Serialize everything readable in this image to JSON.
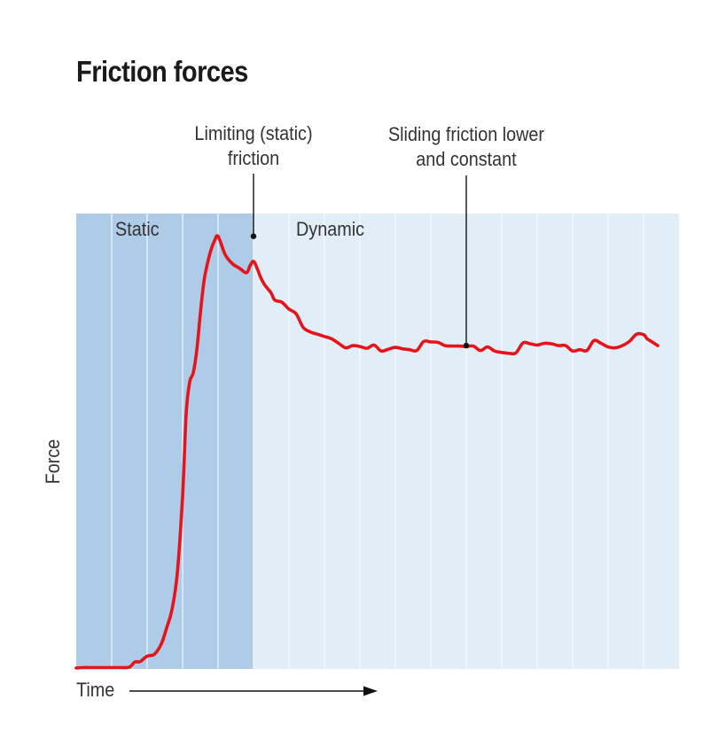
{
  "chart_data": {
    "type": "line",
    "title": "Friction forces",
    "xlabel": "Time",
    "ylabel": "Force",
    "xlim": [
      0,
      340
    ],
    "ylim": [
      0,
      100
    ],
    "regions": [
      {
        "name": "Static",
        "x_start": 0,
        "x_end": 100,
        "color": "#aecbe8"
      },
      {
        "name": "Dynamic",
        "x_start": 100,
        "x_end": 340,
        "color": "#e1edf7"
      }
    ],
    "vertical_grid_x": [
      20,
      40,
      60,
      80,
      100,
      120,
      140,
      160,
      180,
      200,
      220,
      240,
      260,
      280,
      300,
      320
    ],
    "series": [
      {
        "name": "Force",
        "color": "#e5141b",
        "x": [
          0,
          4,
          8,
          16,
          24,
          30,
          33,
          36,
          40,
          44,
          48,
          51,
          54,
          57,
          60,
          62,
          64,
          66,
          68,
          70,
          72,
          74,
          76,
          78,
          80,
          84,
          88,
          92,
          96,
          98,
          100,
          102,
          104,
          106,
          108,
          110,
          112,
          116,
          120,
          124,
          128,
          132,
          136,
          140,
          144,
          148,
          152,
          156,
          160,
          164,
          168,
          172,
          176,
          180,
          184,
          188,
          192,
          196,
          200,
          204,
          208,
          212,
          216,
          220,
          224,
          228,
          232,
          236,
          240,
          244,
          248,
          252,
          256,
          260,
          264,
          268,
          272,
          276,
          280,
          284,
          288,
          292,
          296,
          300,
          304,
          308,
          312,
          316,
          320,
          322,
          324,
          326,
          328
        ],
        "y": [
          0.2,
          0.3,
          0.3,
          0.3,
          0.3,
          0.4,
          1.5,
          1.6,
          2.8,
          3.2,
          5.5,
          9.0,
          13.0,
          21.0,
          38.0,
          56.0,
          63.0,
          65.0,
          70.0,
          78.0,
          85.0,
          89.0,
          92.0,
          94.0,
          95.0,
          91.0,
          89.0,
          88.0,
          87.0,
          88.5,
          89.5,
          88.0,
          86.0,
          84.5,
          83.5,
          82.5,
          81.0,
          80.5,
          79.0,
          78.0,
          75.0,
          74.0,
          73.5,
          73.0,
          72.5,
          71.5,
          70.5,
          71.0,
          70.8,
          70.4,
          71.1,
          69.8,
          70.2,
          70.6,
          70.3,
          70.1,
          69.9,
          71.9,
          71.8,
          71.7,
          71.0,
          70.9,
          70.9,
          70.8,
          70.9,
          69.9,
          70.7,
          69.8,
          69.5,
          69.3,
          69.4,
          71.6,
          71.4,
          71.1,
          71.5,
          71.4,
          71.0,
          71.0,
          69.8,
          70.1,
          69.9,
          72.1,
          71.5,
          70.7,
          70.5,
          71.0,
          71.9,
          73.5,
          73.4,
          72.5,
          72.0,
          71.5,
          71.0
        ]
      }
    ],
    "annotations": [
      {
        "lines": [
          "Limiting (static)",
          "friction"
        ],
        "x": 100,
        "y": 95
      },
      {
        "lines": [
          "Sliding friction lower",
          "and constant"
        ],
        "x": 220,
        "y": 71
      }
    ],
    "regions_labels": {
      "static": "Static",
      "dynamic": "Dynamic"
    }
  }
}
